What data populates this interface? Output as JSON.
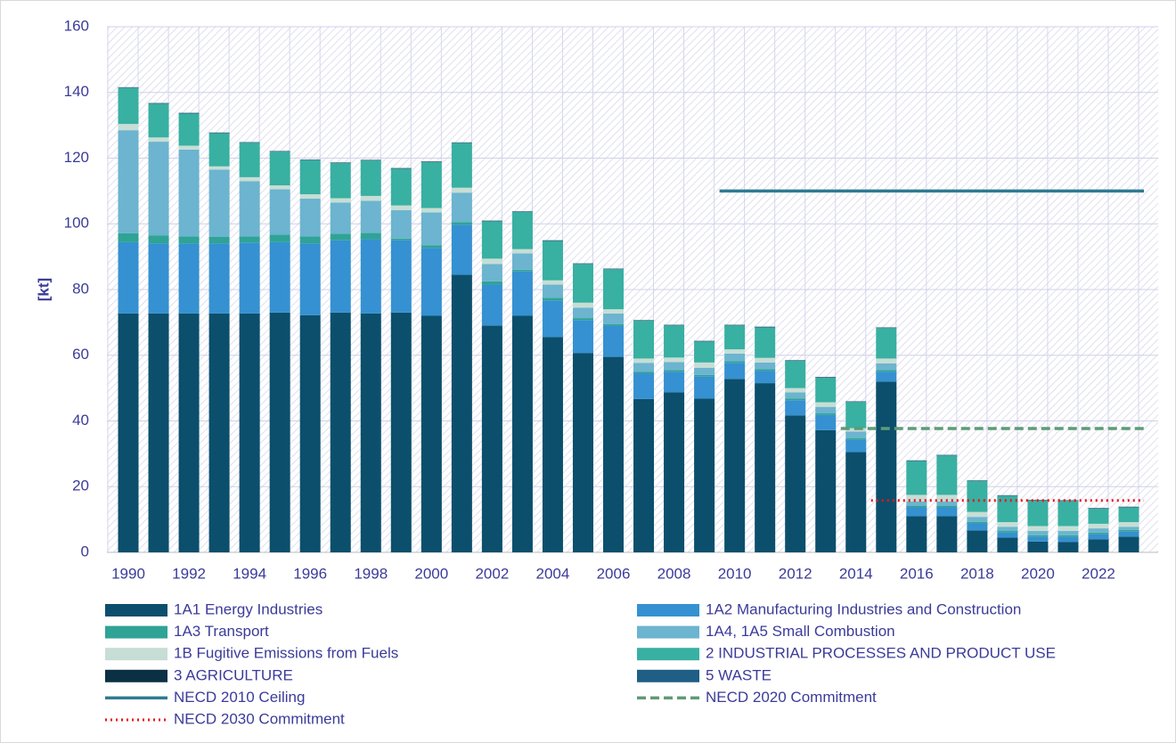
{
  "chart_data": {
    "type": "bar",
    "stacked": true,
    "ylabel": "[kt]",
    "categories": [
      "1990",
      null,
      "1992",
      null,
      "1994",
      null,
      "1996",
      null,
      "1998",
      null,
      "2000",
      null,
      "2002",
      null,
      "2004",
      null,
      "2006",
      null,
      "2008",
      null,
      "2010",
      null,
      "2012",
      null,
      "2014",
      null,
      "2016",
      null,
      "2018",
      null,
      "2020",
      null,
      "2022",
      null
    ],
    "ylim": [
      0,
      160
    ],
    "yticks": [
      0,
      20,
      40,
      60,
      80,
      100,
      120,
      140,
      160
    ],
    "grid": true,
    "series": [
      {
        "name": "1A1 Energy Industries",
        "color": "#0b4f6c",
        "values": [
          72.7,
          72.7,
          72.7,
          72.7,
          72.7,
          73,
          72.2,
          73,
          72.7,
          73,
          72,
          84.5,
          69,
          72,
          65.5,
          60.7,
          59.5,
          46.7,
          48.7,
          46.8,
          52.8,
          51.5,
          41.7,
          37.2,
          30.5,
          52,
          11,
          11,
          6.7,
          4.5,
          3.3,
          3.2,
          4,
          4.8
        ]
      },
      {
        "name": "1A2 Manufacturing Industries and Construction",
        "color": "#3591d1",
        "values": [
          21.7,
          21.3,
          21.3,
          21.3,
          21.6,
          21.4,
          21.8,
          22,
          22.6,
          22,
          20.7,
          15.2,
          12.5,
          13.5,
          11.2,
          10,
          9.5,
          7.8,
          6.3,
          6.7,
          4.9,
          3.8,
          4.6,
          4.6,
          3.7,
          3,
          2.7,
          2.7,
          2.1,
          1.5,
          1.4,
          1.5,
          1.5,
          1.5
        ]
      },
      {
        "name": "1A3 Transport",
        "color": "#2fa396",
        "values": [
          2.7,
          2.5,
          2.2,
          2,
          1.9,
          2.3,
          2.2,
          2,
          1.9,
          0.5,
          0.8,
          0.8,
          1,
          0.5,
          0.8,
          0.6,
          0.5,
          0.5,
          0.5,
          0.5,
          0.5,
          0.5,
          0.5,
          0.5,
          0.5,
          0.5,
          0.5,
          0.5,
          0.5,
          0.5,
          0.5,
          0.5,
          0.5,
          0.5
        ]
      },
      {
        "name": "1A4, 1A5 Small Combustion",
        "color": "#6cb4cf",
        "values": [
          31.4,
          28.5,
          26.4,
          20.5,
          16.8,
          13.8,
          11.5,
          9.5,
          9.8,
          8.7,
          10,
          9,
          5.3,
          5,
          4,
          3.2,
          3.2,
          2.7,
          2.4,
          2.2,
          2.3,
          2,
          1.9,
          2,
          2.1,
          2,
          1.3,
          1.3,
          1.5,
          1.3,
          1.3,
          1.3,
          1.3,
          1
        ]
      },
      {
        "name": "1B Fugitive Emissions from Fuels",
        "color": "#c6ded5",
        "values": [
          1.9,
          1.3,
          1.2,
          1,
          1.2,
          1.2,
          1.3,
          1.3,
          1.5,
          1.4,
          1.3,
          1.5,
          1.6,
          1.3,
          1.3,
          1.5,
          1.3,
          1.3,
          1.4,
          1.6,
          1.3,
          1.4,
          1.3,
          1.4,
          1,
          1.5,
          2,
          2,
          1.5,
          1.4,
          1.5,
          1.5,
          1.4,
          1.4
        ]
      },
      {
        "name": "2 INDUSTRIAL PROCESSES AND PRODUCT USE",
        "color": "#38b0a2",
        "values": [
          11,
          10.3,
          9.8,
          10.1,
          10.5,
          10.3,
          10.4,
          10.7,
          10.8,
          11.2,
          14,
          13.6,
          11.4,
          11.3,
          12,
          11.8,
          12.2,
          11.5,
          9.8,
          6.4,
          7.3,
          9.3,
          8.3,
          7.5,
          8,
          9.3,
          10.3,
          12,
          9.4,
          8,
          7.8,
          7.7,
          4.6,
          4.5
        ]
      },
      {
        "name": "3 AGRICULTURE",
        "color": "#0b2f43",
        "values": [
          0.1,
          0.1,
          0.1,
          0.1,
          0.1,
          0.1,
          0.1,
          0.1,
          0.1,
          0.1,
          0.1,
          0.1,
          0.1,
          0.1,
          0.1,
          0.1,
          0.1,
          0.1,
          0.1,
          0.1,
          0.1,
          0.1,
          0.1,
          0.1,
          0.1,
          0.1,
          0.1,
          0.1,
          0.1,
          0.1,
          0.1,
          0.1,
          0.1,
          0.1
        ]
      },
      {
        "name": "5 WASTE",
        "color": "#1f5e85",
        "values": [
          0.1,
          0.1,
          0.1,
          0.1,
          0.1,
          0.1,
          0.1,
          0.1,
          0.1,
          0.1,
          0.1,
          0.1,
          0.1,
          0.1,
          0.1,
          0.1,
          0.1,
          0.1,
          0.1,
          0.1,
          0.1,
          0.1,
          0.1,
          0.1,
          0.1,
          0.1,
          0.1,
          0.1,
          0.1,
          0.1,
          0.1,
          0.1,
          0.1,
          0.1
        ]
      }
    ],
    "lines": [
      {
        "name": "NECD 2010 Ceiling",
        "color": "#2e7b8f",
        "style": "solid",
        "values": [
          null,
          null,
          null,
          null,
          null,
          null,
          null,
          null,
          null,
          null,
          null,
          null,
          null,
          null,
          null,
          null,
          null,
          null,
          null,
          null,
          110,
          110,
          110,
          110,
          110,
          110,
          110,
          110,
          110,
          110,
          110,
          110,
          110,
          110
        ]
      },
      {
        "name": "NECD 2020 Commitment",
        "color": "#5e9b76",
        "style": "dashed",
        "values": [
          null,
          null,
          null,
          null,
          null,
          null,
          null,
          null,
          null,
          null,
          null,
          null,
          null,
          null,
          null,
          null,
          null,
          null,
          null,
          null,
          null,
          null,
          null,
          null,
          37.7,
          37.7,
          37.7,
          37.7,
          37.7,
          37.7,
          37.7,
          37.7,
          37.7,
          37.7
        ]
      },
      {
        "name": "NECD 2030 Commitment",
        "color": "#e8151b",
        "style": "dotted",
        "values": [
          null,
          null,
          null,
          null,
          null,
          null,
          null,
          null,
          null,
          null,
          null,
          null,
          null,
          null,
          null,
          null,
          null,
          null,
          null,
          null,
          null,
          null,
          null,
          null,
          null,
          15.8,
          15.8,
          15.8,
          15.8,
          15.8,
          15.8,
          15.8,
          15.8,
          15.8
        ]
      }
    ]
  }
}
